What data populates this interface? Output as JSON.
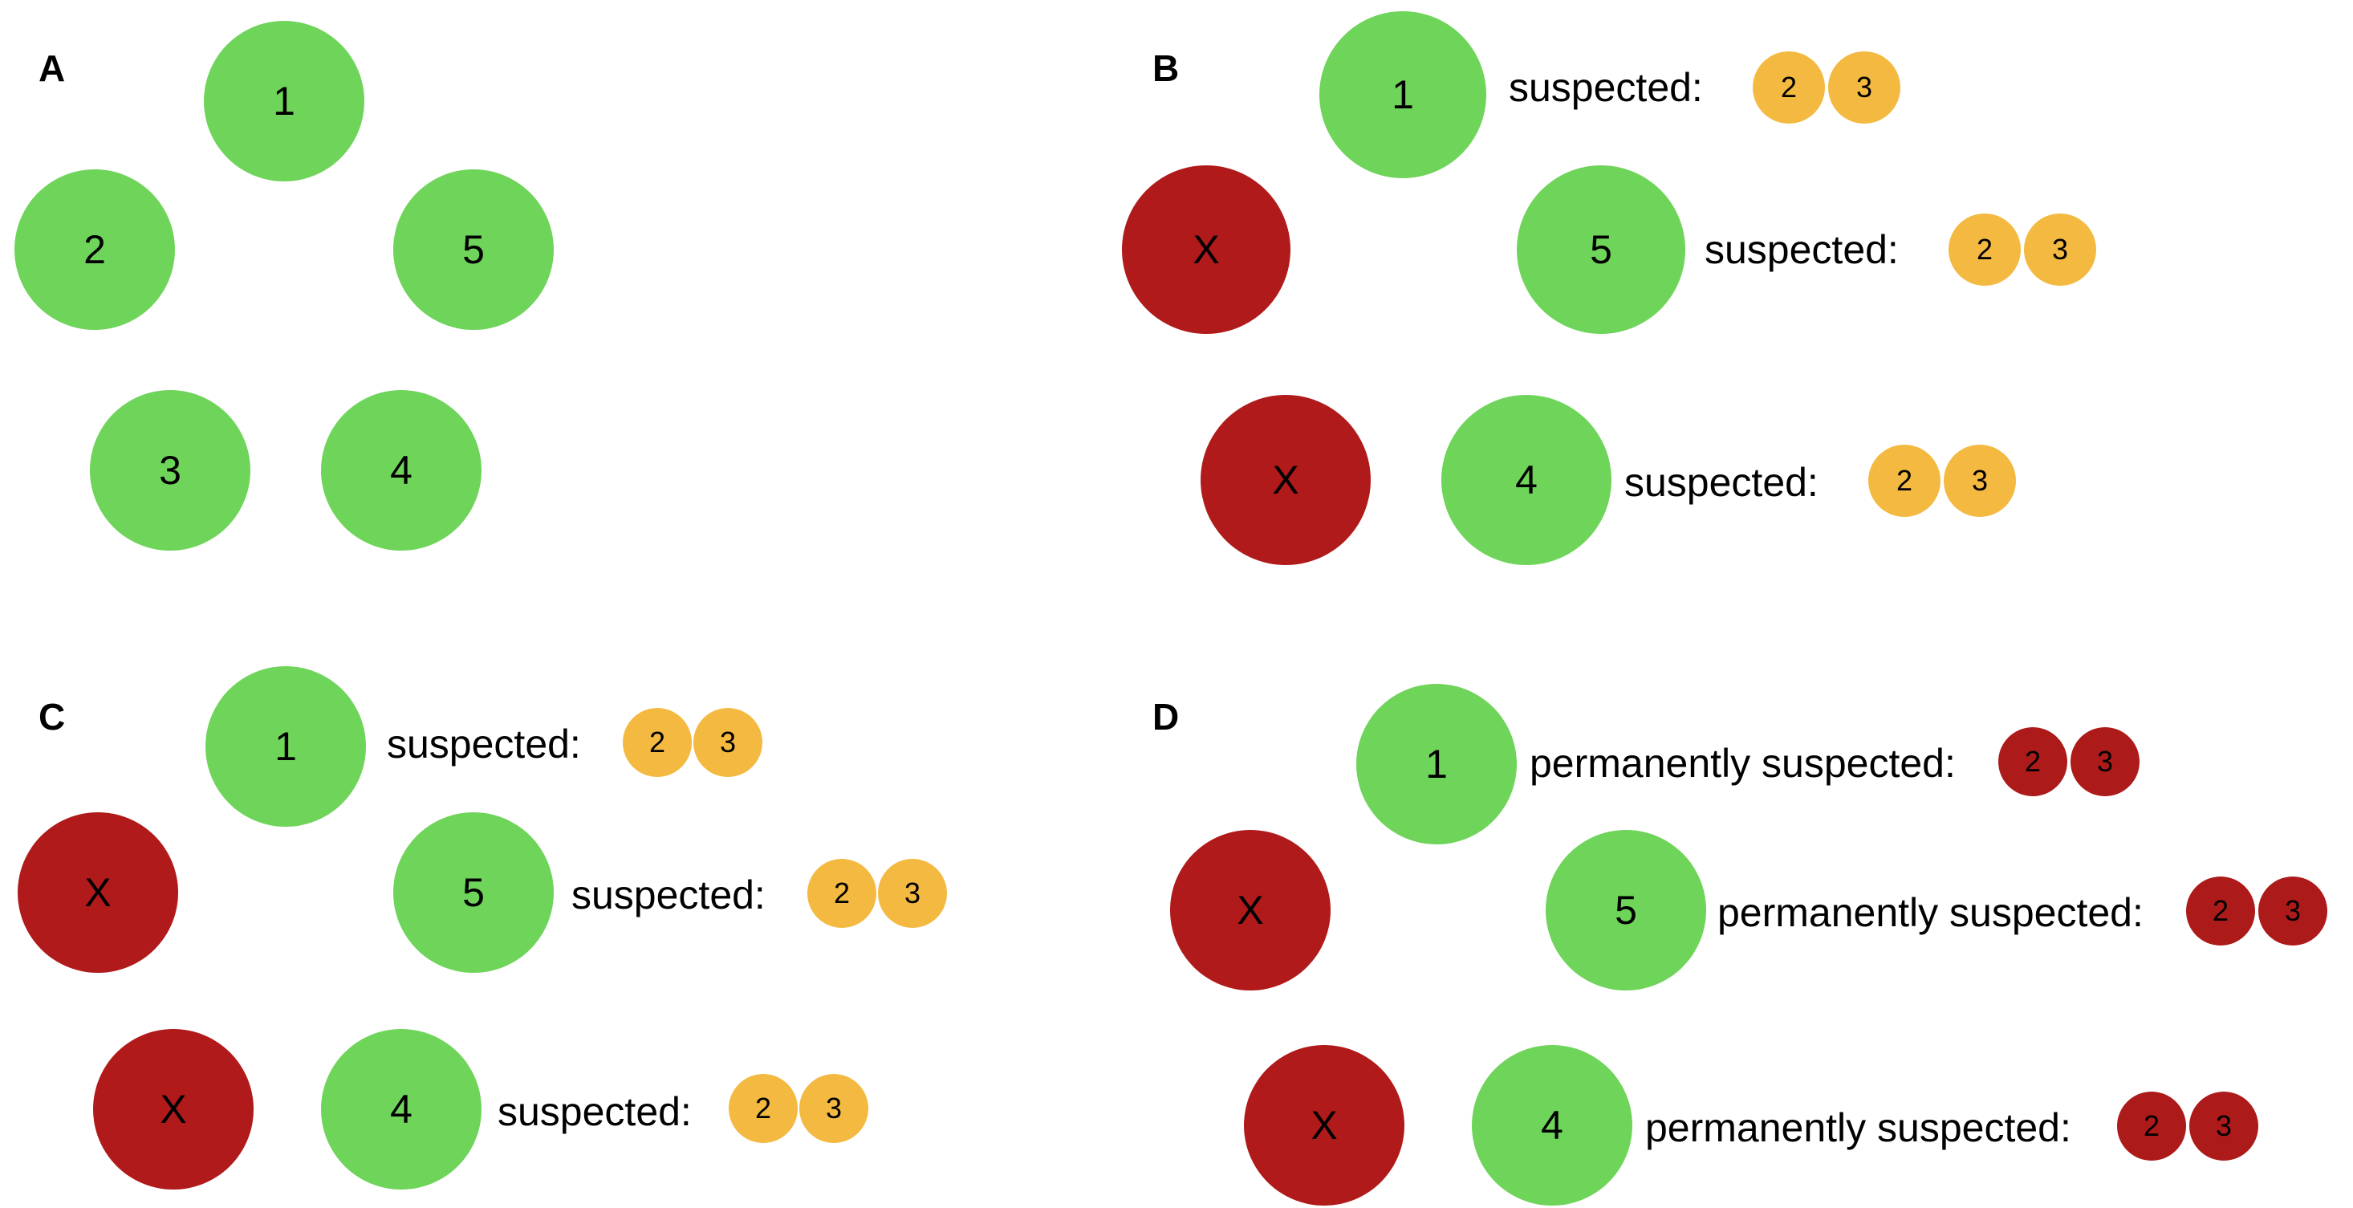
{
  "panels": [
    {
      "label": "A",
      "nodes": [
        "1",
        "2",
        "5",
        "3",
        "4"
      ],
      "statuses": []
    },
    {
      "label": "B",
      "nodes": [
        "1",
        "X",
        "5",
        "X",
        "4"
      ],
      "statuses": [
        {
          "text": "suspected:",
          "badges": [
            "2",
            "3"
          ]
        },
        {
          "text": "suspected:",
          "badges": [
            "2",
            "3"
          ]
        },
        {
          "text": "suspected:",
          "badges": [
            "2",
            "3"
          ]
        }
      ]
    },
    {
      "label": "C",
      "nodes": [
        "1",
        "X",
        "5",
        "X",
        "4"
      ],
      "statuses": [
        {
          "text": "suspected:",
          "badges": [
            "2",
            "3"
          ]
        },
        {
          "text": "suspected:",
          "badges": [
            "2",
            "3"
          ]
        },
        {
          "text": "suspected:",
          "badges": [
            "2",
            "3"
          ]
        }
      ]
    },
    {
      "label": "D",
      "nodes": [
        "1",
        "X",
        "5",
        "X",
        "4"
      ],
      "statuses": [
        {
          "text": "permanently suspected:",
          "badges": [
            "2",
            "3"
          ]
        },
        {
          "text": "permanently suspected:",
          "badges": [
            "2",
            "3"
          ]
        },
        {
          "text": "permanently suspected:",
          "badges": [
            "2",
            "3"
          ]
        }
      ]
    }
  ],
  "colors": {
    "alive": "#6fd45a",
    "failed": "#b01a1a",
    "suspected": "#f3b941",
    "permanently_suspected": "#ad1a1a"
  }
}
